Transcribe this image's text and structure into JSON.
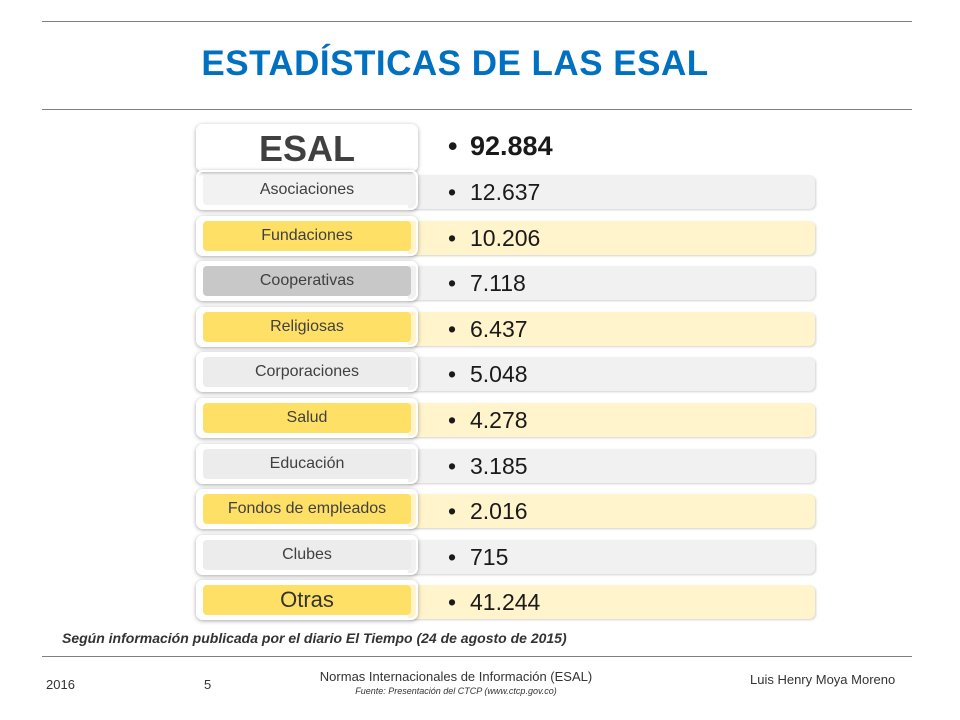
{
  "title": "ESTADÍSTICAS DE LAS ESAL",
  "header": {
    "label": "ESAL",
    "value": "92.884"
  },
  "rows": [
    {
      "label": "Asociaciones",
      "value": "12.637",
      "style": "gray"
    },
    {
      "label": "Fundaciones",
      "value": "10.206",
      "style": "yellow"
    },
    {
      "label": "Cooperativas",
      "value": "7.118",
      "style": "dark"
    },
    {
      "label": "Religiosas",
      "value": "6.437",
      "style": "yellow"
    },
    {
      "label": "Corporaciones",
      "value": "5.048",
      "style": "light"
    },
    {
      "label": "Salud",
      "value": "4.278",
      "style": "yellow"
    },
    {
      "label": "Educación",
      "value": "3.185",
      "style": "light"
    },
    {
      "label": "Fondos de empleados",
      "value": "2.016",
      "style": "yellow"
    },
    {
      "label": "Clubes",
      "value": "715",
      "style": "light"
    },
    {
      "label": "Otras",
      "value": "41.244",
      "style": "yellow"
    }
  ],
  "bullet": "•",
  "source": "Según información publicada por el diario El Tiempo (24 de agosto de 2015)",
  "footer": {
    "year": "2016",
    "page": "5",
    "center": "Normas Internacionales de Información (ESAL)",
    "subtitle": "Fuente: Presentación del CTCP (www.ctcp.gov.co)",
    "author": "Luis Henry Moya Moreno"
  }
}
